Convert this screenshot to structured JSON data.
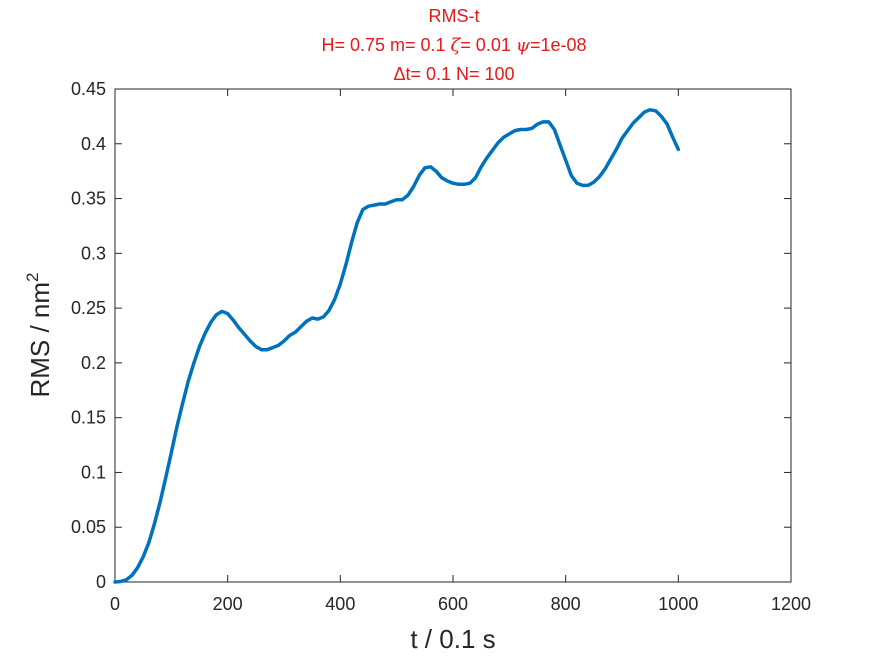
{
  "chart_data": {
    "type": "line",
    "title": "RMS-t",
    "subtitle_lines": [
      [
        "H= 0.75 m= 0.1 ",
        "ζ",
        "= 0.01 ",
        "ψ",
        "=1e-08"
      ],
      [
        "Δ",
        "t= 0.1 N= 100"
      ]
    ],
    "xlabel": "t / 0.1 s",
    "ylabel_text": "RMS / nm",
    "ylabel_superscript": "2",
    "xlim": [
      0,
      1200
    ],
    "ylim": [
      0,
      0.45
    ],
    "x_ticks": [
      "0",
      "200",
      "400",
      "600",
      "800",
      "1000",
      "1200"
    ],
    "y_ticks": [
      "0",
      "0.05",
      "0.1",
      "0.15",
      "0.2",
      "0.25",
      "0.3",
      "0.35",
      "0.4",
      "0.45"
    ],
    "grid": false,
    "colors": {
      "series": "#0072bd",
      "title": "#e8191b",
      "axis": "#262626"
    },
    "series": [
      {
        "x": [
          0,
          10,
          20,
          30,
          40,
          50,
          60,
          70,
          80,
          90,
          100,
          110,
          120,
          130,
          140,
          150,
          160,
          170,
          180,
          190,
          200,
          210,
          220,
          230,
          240,
          250,
          260,
          270,
          280,
          290,
          300,
          310,
          320,
          330,
          340,
          350,
          360,
          370,
          380,
          390,
          400,
          410,
          420,
          430,
          440,
          450,
          460,
          470,
          480,
          490,
          500,
          510,
          520,
          530,
          540,
          550,
          560,
          570,
          580,
          590,
          600,
          610,
          620,
          630,
          640,
          650,
          660,
          670,
          680,
          690,
          700,
          710,
          720,
          730,
          740,
          750,
          760,
          770,
          780,
          790,
          800,
          810,
          820,
          830,
          840,
          850,
          860,
          870,
          880,
          890,
          900,
          910,
          920,
          930,
          940,
          950,
          960,
          970,
          980,
          990,
          1000
        ],
        "values": [
          0,
          0.0005,
          0.002,
          0.006,
          0.013,
          0.023,
          0.036,
          0.053,
          0.073,
          0.095,
          0.118,
          0.142,
          0.163,
          0.183,
          0.2,
          0.215,
          0.227,
          0.237,
          0.244,
          0.247,
          0.245,
          0.239,
          0.232,
          0.226,
          0.22,
          0.215,
          0.212,
          0.212,
          0.214,
          0.216,
          0.22,
          0.225,
          0.228,
          0.233,
          0.238,
          0.241,
          0.24,
          0.242,
          0.248,
          0.258,
          0.272,
          0.29,
          0.31,
          0.328,
          0.34,
          0.343,
          0.344,
          0.345,
          0.345,
          0.347,
          0.349,
          0.349,
          0.353,
          0.361,
          0.371,
          0.378,
          0.379,
          0.375,
          0.369,
          0.366,
          0.364,
          0.363,
          0.363,
          0.364,
          0.369,
          0.379,
          0.387,
          0.394,
          0.401,
          0.406,
          0.409,
          0.412,
          0.413,
          0.413,
          0.414,
          0.418,
          0.42,
          0.42,
          0.413,
          0.399,
          0.385,
          0.371,
          0.364,
          0.362,
          0.362,
          0.365,
          0.37,
          0.377,
          0.386,
          0.395,
          0.405,
          0.412,
          0.419,
          0.424,
          0.429,
          0.431,
          0.43,
          0.425,
          0.418,
          0.406,
          0.395
        ]
      }
    ]
  }
}
